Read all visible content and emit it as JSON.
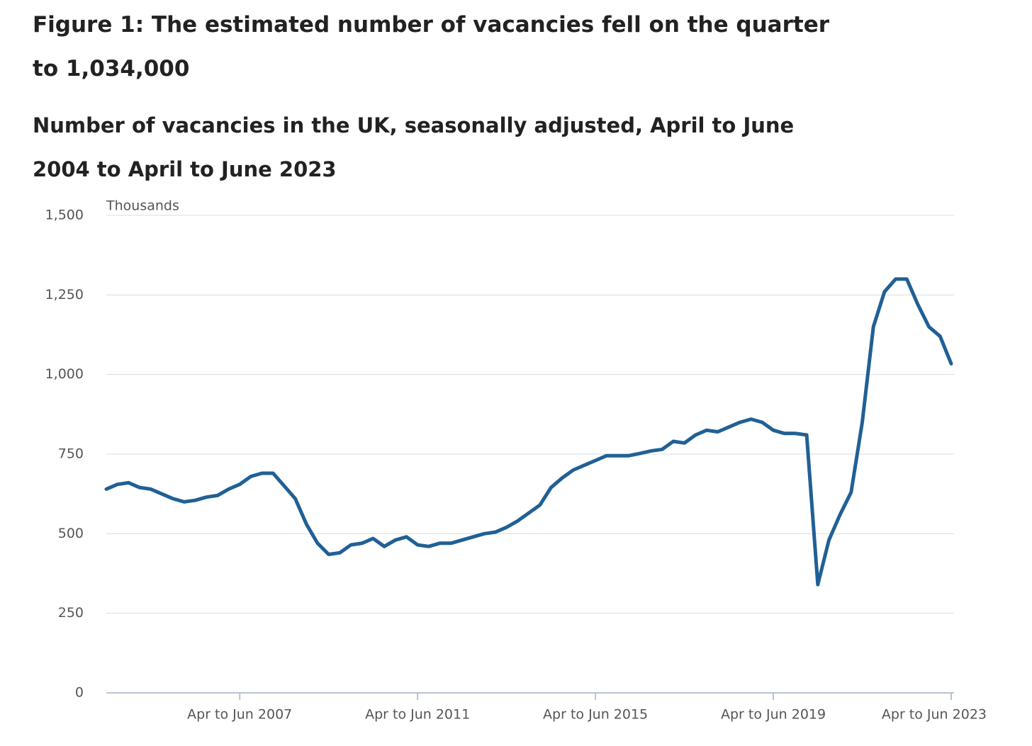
{
  "chart_data": {
    "type": "line",
    "title": "Figure 1: The estimated number of vacancies fell on the quarter to 1,034,000",
    "subtitle": "Number of vacancies in the UK, seasonally adjusted, April to June 2004 to April to June 2023",
    "y_axis_label": "Thousands",
    "categories": [
      null,
      null,
      null,
      null,
      null,
      null,
      null,
      null,
      null,
      null,
      null,
      null,
      "Apr to Jun 2007",
      null,
      null,
      null,
      null,
      null,
      null,
      null,
      null,
      null,
      null,
      null,
      null,
      null,
      null,
      null,
      "Apr to Jun 2011",
      null,
      null,
      null,
      null,
      null,
      null,
      null,
      null,
      null,
      null,
      null,
      null,
      null,
      null,
      null,
      "Apr to Jun 2015",
      null,
      null,
      null,
      null,
      null,
      null,
      null,
      null,
      null,
      null,
      null,
      null,
      null,
      null,
      null,
      "Apr to Jun 2019",
      null,
      null,
      null,
      null,
      null,
      null,
      null,
      null,
      null,
      null,
      null,
      null,
      null,
      null,
      null,
      "Apr to Jun 2023"
    ],
    "series": [
      {
        "name": "Vacancies",
        "color": "#206095",
        "values": [
          640,
          655,
          660,
          645,
          640,
          625,
          610,
          600,
          605,
          615,
          620,
          640,
          655,
          680,
          690,
          690,
          650,
          610,
          530,
          470,
          435,
          440,
          465,
          470,
          485,
          460,
          480,
          490,
          465,
          460,
          470,
          470,
          480,
          490,
          500,
          505,
          520,
          540,
          565,
          590,
          645,
          675,
          700,
          715,
          730,
          745,
          745,
          745,
          752,
          760,
          765,
          790,
          785,
          810,
          825,
          820,
          835,
          850,
          860,
          850,
          825,
          815,
          815,
          810,
          340,
          480,
          560,
          630,
          850,
          1150,
          1260,
          1300,
          1300,
          1220,
          1150,
          1120,
          1034
        ]
      }
    ],
    "ylim": [
      0,
      1500
    ],
    "yticks": [
      0,
      250,
      500,
      750,
      {
        "value": 1000,
        "label": "1,000"
      },
      {
        "value": 1250,
        "label": "1,250"
      },
      {
        "value": 1500,
        "label": "1,500"
      }
    ],
    "grid": true
  }
}
